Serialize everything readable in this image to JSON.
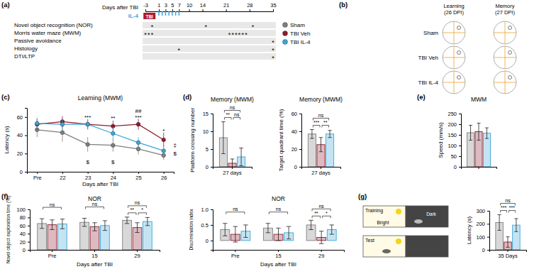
{
  "panel_labels": [
    "(a)",
    "(b)",
    "(c)",
    "(d)",
    "(e)",
    "(f)",
    "(g)"
  ],
  "groups": [
    {
      "name": "Sham",
      "color": "#7f7f7f"
    },
    {
      "name": "TBI Veh",
      "color": "#8e1b2f"
    },
    {
      "name": "TBI IL-4",
      "color": "#3aa6d8"
    }
  ],
  "timeline": {
    "axis_label": "Days after TBI",
    "event": "TBI",
    "event_day": 0,
    "treatment": "IL-4",
    "treatment_days": [
      1,
      2,
      3,
      4,
      5,
      6,
      7
    ],
    "xlim": [
      -3,
      35
    ],
    "ticks": [
      -3,
      1,
      3,
      5,
      7,
      10,
      14,
      21,
      28,
      35
    ],
    "marker": "*",
    "rows": [
      {
        "label": "Novel object recognition (NOR)",
        "days": [
          -1,
          15,
          29
        ]
      },
      {
        "label": "Morris water maze (MWM)",
        "days": [
          -3,
          -2,
          -1,
          22,
          23,
          24,
          25,
          26,
          27
        ]
      },
      {
        "label": "Passive avoidance",
        "days": [
          35
        ]
      },
      {
        "label": "Histology",
        "days": [
          7,
          35
        ]
      },
      {
        "label": "DTI/LTP",
        "days": [
          35
        ]
      }
    ]
  },
  "trajectories": {
    "columns": [
      [
        "Learning",
        "(26 DPI)"
      ],
      [
        "Memory",
        "(27 DPI)"
      ]
    ],
    "rows": [
      "Sham",
      "TBI Veh",
      "TBI IL-4"
    ]
  },
  "passive_avoidance_scheme": {
    "stages": [
      "Training",
      "Test"
    ],
    "compartments": [
      "Bright",
      "Dark"
    ]
  },
  "chart_data": [
    {
      "type": "line",
      "title": "Learning (MWM)",
      "x_label": "Days after TBI",
      "y_label": "Latency (s)",
      "categories": [
        "Pre",
        "22",
        "23",
        "24",
        "25",
        "26"
      ],
      "ylim": [
        0,
        70
      ],
      "yticks": [
        0,
        20,
        40,
        60
      ],
      "series": [
        {
          "name": "Sham",
          "color": "#7f7f7f",
          "values": [
            46,
            43,
            30,
            29,
            25,
            18
          ],
          "errors": [
            8,
            10,
            8,
            7,
            6,
            5
          ]
        },
        {
          "name": "TBI Veh",
          "color": "#8e1b2f",
          "values": [
            52,
            55,
            52,
            50,
            52,
            35
          ],
          "errors": [
            6,
            6,
            5,
            6,
            6,
            8
          ]
        },
        {
          "name": "TBI IL-4",
          "color": "#3aa6d8",
          "values": [
            53,
            52,
            52,
            42,
            32,
            23
          ],
          "errors": [
            6,
            6,
            6,
            7,
            6,
            6
          ]
        }
      ],
      "annotations": [
        {
          "text": "***",
          "x": 2,
          "y": 61
        },
        {
          "text": "**",
          "x": 3,
          "y": 60
        },
        {
          "text": "##",
          "x": 4,
          "y": 68
        },
        {
          "text": "***",
          "x": 4,
          "y": 61
        },
        {
          "text": "*",
          "x": 5,
          "y": 46
        },
        {
          "text": "$",
          "x": 2,
          "y": 12
        },
        {
          "text": "$",
          "x": 3,
          "y": 12
        },
        {
          "text": "‡",
          "x": 5.45,
          "y": 30
        },
        {
          "text": "$",
          "x": 5.45,
          "y": 21
        }
      ]
    },
    {
      "type": "bar",
      "title": "Memory (MWM)",
      "y_label": "Platform crossing number",
      "categories": [
        "27 days"
      ],
      "ylim": [
        0,
        15
      ],
      "yticks": [
        0,
        5,
        10,
        15
      ],
      "series": [
        {
          "name": "Sham",
          "color": "#7f7f7f",
          "values": [
            8.2
          ],
          "errors": [
            4.5
          ]
        },
        {
          "name": "TBI Veh",
          "color": "#8e1b2f",
          "values": [
            1
          ],
          "errors": [
            1.2
          ]
        },
        {
          "name": "TBI IL-4",
          "color": "#3aa6d8",
          "values": [
            2.8
          ],
          "errors": [
            2.5
          ]
        }
      ],
      "comparisons": [
        {
          "category": 0,
          "from": 0,
          "to": 1,
          "label": "**"
        },
        {
          "category": 0,
          "from": 1,
          "to": 2,
          "label": "ns"
        },
        {
          "category": 0,
          "from": 0,
          "to": 2,
          "label": "ns"
        }
      ]
    },
    {
      "type": "bar",
      "title": "Memory (MWM)",
      "y_label": "Target quadrant time (%)",
      "categories": [
        "27 days"
      ],
      "ylim": [
        0,
        60
      ],
      "yticks": [
        0,
        20,
        40,
        60
      ],
      "series": [
        {
          "name": "Sham",
          "color": "#7f7f7f",
          "values": [
            37
          ],
          "errors": [
            5
          ]
        },
        {
          "name": "TBI Veh",
          "color": "#8e1b2f",
          "values": [
            25
          ],
          "errors": [
            8
          ]
        },
        {
          "name": "TBI IL-4",
          "color": "#3aa6d8",
          "values": [
            37
          ],
          "errors": [
            4
          ]
        }
      ],
      "comparisons": [
        {
          "category": 0,
          "from": 0,
          "to": 1,
          "label": "***"
        },
        {
          "category": 0,
          "from": 1,
          "to": 2,
          "label": "**"
        },
        {
          "category": 0,
          "from": 0,
          "to": 2,
          "label": "ns"
        }
      ]
    },
    {
      "type": "bar",
      "title": "MWM",
      "y_label": "Speed (mm/s)",
      "categories": [
        null
      ],
      "ylim": [
        0,
        250
      ],
      "yticks": [
        0,
        50,
        100,
        150,
        200,
        250
      ],
      "series": [
        {
          "name": "Sham",
          "color": "#7f7f7f",
          "values": [
            160
          ],
          "errors": [
            35
          ]
        },
        {
          "name": "TBI Veh",
          "color": "#8e1b2f",
          "values": [
            165
          ],
          "errors": [
            40
          ]
        },
        {
          "name": "TBI IL-4",
          "color": "#3aa6d8",
          "values": [
            158
          ],
          "errors": [
            25
          ]
        }
      ]
    },
    {
      "type": "bar",
      "title": "NOR",
      "x_label": "Days after TBI",
      "y_label": "Novel object exploration time (%)",
      "categories": [
        "Pre",
        "15",
        "29"
      ],
      "ylim": [
        0,
        100
      ],
      "yticks": [
        0,
        20,
        40,
        60,
        80,
        100
      ],
      "series": [
        {
          "name": "Sham",
          "color": "#7f7f7f",
          "values": [
            65,
            68,
            73
          ],
          "errors": [
            12,
            10,
            8
          ]
        },
        {
          "name": "TBI Veh",
          "color": "#8e1b2f",
          "values": [
            62,
            57,
            55
          ],
          "errors": [
            12,
            10,
            12
          ]
        },
        {
          "name": "TBI IL-4",
          "color": "#3aa6d8",
          "values": [
            64,
            60,
            70
          ],
          "errors": [
            12,
            12,
            10
          ]
        }
      ],
      "comparisons": [
        {
          "category": 0,
          "from": 0,
          "to": 2,
          "label": "ns"
        },
        {
          "category": 1,
          "from": 0,
          "to": 2,
          "label": "ns"
        },
        {
          "category": 2,
          "from": 0,
          "to": 1,
          "label": "**"
        },
        {
          "category": 2,
          "from": 1,
          "to": 2,
          "label": "*"
        },
        {
          "category": 2,
          "from": 0,
          "to": 2,
          "label": "ns"
        }
      ]
    },
    {
      "type": "bar",
      "title": "NOR",
      "x_label": "Days after TBI",
      "y_label": "Discrimination index",
      "categories": [
        "Pre",
        "15",
        "29"
      ],
      "ylim": [
        -0.3,
        1
      ],
      "yticks": [
        0,
        0.5,
        {
          "value": 1,
          "label": "1.0"
        }
      ],
      "series": [
        {
          "name": "Sham",
          "color": "#7f7f7f",
          "values": [
            0.35,
            0.4,
            0.5
          ],
          "errors": [
            0.2,
            0.15,
            0.15
          ]
        },
        {
          "name": "TBI Veh",
          "color": "#8e1b2f",
          "values": [
            0.2,
            0.2,
            0.1
          ],
          "errors": [
            0.25,
            0.2,
            0.2
          ]
        },
        {
          "name": "TBI IL-4",
          "color": "#3aa6d8",
          "values": [
            0.3,
            0.25,
            0.35
          ],
          "errors": [
            0.2,
            0.2,
            0.15
          ]
        }
      ],
      "comparisons": [
        {
          "category": 0,
          "from": 0,
          "to": 2,
          "label": "ns"
        },
        {
          "category": 1,
          "from": 0,
          "to": 2,
          "label": "ns"
        },
        {
          "category": 2,
          "from": 0,
          "to": 1,
          "label": "**"
        },
        {
          "category": 2,
          "from": 1,
          "to": 2,
          "label": "*"
        },
        {
          "category": 2,
          "from": 0,
          "to": 2,
          "label": "ns"
        }
      ]
    },
    {
      "type": "bar",
      "y_label": "Latency (s)",
      "categories": [
        "35 Days"
      ],
      "ylim": [
        0,
        300
      ],
      "yticks": [
        0,
        100,
        200,
        300
      ],
      "series": [
        {
          "name": "Sham",
          "color": "#7f7f7f",
          "values": [
            210
          ],
          "errors": [
            60
          ]
        },
        {
          "name": "TBI Veh",
          "color": "#8e1b2f",
          "values": [
            60
          ],
          "errors": [
            40
          ]
        },
        {
          "name": "TBI IL-4",
          "color": "#3aa6d8",
          "values": [
            190
          ],
          "errors": [
            50
          ]
        }
      ],
      "comparisons": [
        {
          "category": 0,
          "from": 0,
          "to": 1,
          "label": "***"
        },
        {
          "category": 0,
          "from": 1,
          "to": 2,
          "label": "***"
        },
        {
          "category": 0,
          "from": 0,
          "to": 2,
          "label": "ns"
        }
      ]
    }
  ]
}
